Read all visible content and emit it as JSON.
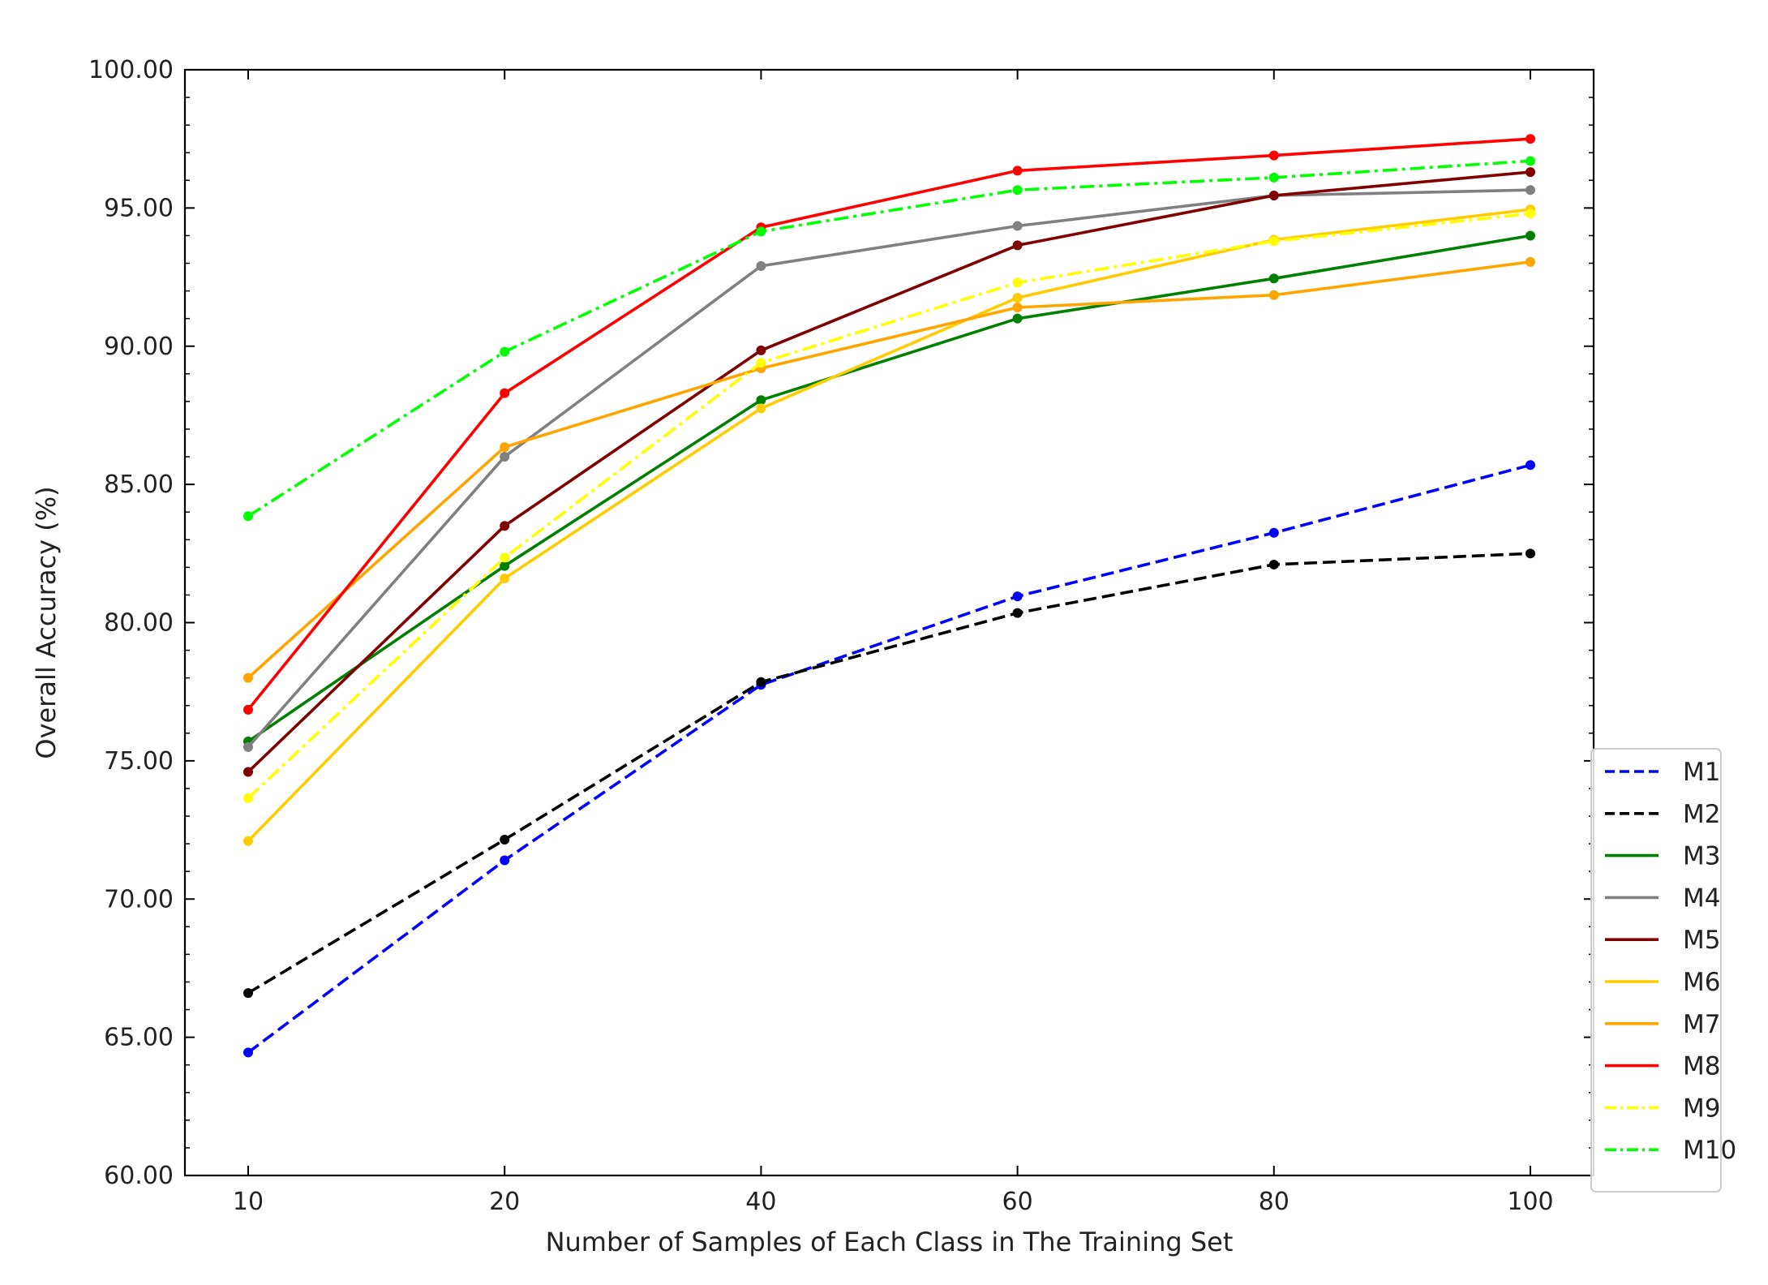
{
  "chart_data": {
    "type": "line",
    "xlabel": "Number of Samples of Each Class in The Training Set",
    "ylabel": "Overall Accuracy (%)",
    "categories": [
      "10",
      "20",
      "40",
      "60",
      "80",
      "100"
    ],
    "ylim": [
      60,
      100
    ],
    "yticks": [
      "60.00",
      "65.00",
      "70.00",
      "75.00",
      "80.00",
      "85.00",
      "90.00",
      "95.00",
      "100.00"
    ],
    "grid": false,
    "legend_position": "lower-right (outside axes)",
    "series": [
      {
        "name": "M1",
        "color": "#0000ff",
        "style": "dashed",
        "values": [
          64.45,
          71.4,
          77.75,
          80.95,
          83.25,
          85.7
        ]
      },
      {
        "name": "M2",
        "color": "#000000",
        "style": "dashed",
        "values": [
          66.6,
          72.15,
          77.85,
          80.35,
          82.1,
          82.5
        ]
      },
      {
        "name": "M3",
        "color": "#008000",
        "style": "solid",
        "values": [
          75.7,
          82.05,
          88.05,
          91.0,
          92.45,
          94.0
        ]
      },
      {
        "name": "M4",
        "color": "#808080",
        "style": "solid",
        "values": [
          75.5,
          86.0,
          92.9,
          94.35,
          95.45,
          95.65
        ]
      },
      {
        "name": "M5",
        "color": "#800000",
        "style": "solid",
        "values": [
          74.6,
          83.5,
          89.85,
          93.65,
          95.45,
          96.3
        ]
      },
      {
        "name": "M6",
        "color": "#ffcc00",
        "style": "solid",
        "values": [
          72.1,
          81.6,
          87.75,
          91.75,
          93.85,
          94.95
        ]
      },
      {
        "name": "M7",
        "color": "#ffa500",
        "style": "solid",
        "values": [
          78.0,
          86.35,
          89.2,
          91.4,
          91.85,
          93.05
        ]
      },
      {
        "name": "M8",
        "color": "#ff0000",
        "style": "solid",
        "values": [
          76.85,
          88.3,
          94.3,
          96.35,
          96.9,
          97.5
        ]
      },
      {
        "name": "M9",
        "color": "#ffff00",
        "style": "dashdot",
        "values": [
          73.65,
          82.35,
          89.4,
          92.3,
          93.8,
          94.8
        ]
      },
      {
        "name": "M10",
        "color": "#00ff00",
        "style": "dashdot",
        "values": [
          83.85,
          89.8,
          94.15,
          95.65,
          96.1,
          96.7
        ]
      }
    ]
  }
}
